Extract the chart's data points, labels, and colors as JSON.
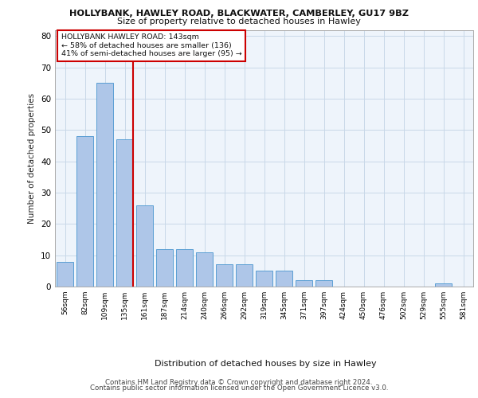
{
  "title": "HOLLYBANK, HAWLEY ROAD, BLACKWATER, CAMBERLEY, GU17 9BZ",
  "subtitle": "Size of property relative to detached houses in Hawley",
  "xlabel": "Distribution of detached houses by size in Hawley",
  "ylabel": "Number of detached properties",
  "categories": [
    "56sqm",
    "82sqm",
    "109sqm",
    "135sqm",
    "161sqm",
    "187sqm",
    "214sqm",
    "240sqm",
    "266sqm",
    "292sqm",
    "319sqm",
    "345sqm",
    "371sqm",
    "397sqm",
    "424sqm",
    "450sqm",
    "476sqm",
    "502sqm",
    "529sqm",
    "555sqm",
    "581sqm"
  ],
  "values": [
    8,
    48,
    65,
    47,
    26,
    12,
    12,
    11,
    7,
    7,
    5,
    5,
    2,
    2,
    0,
    0,
    0,
    0,
    0,
    1,
    0
  ],
  "bar_color": "#aec6e8",
  "bar_edge_color": "#5a9fd4",
  "vline_pos": 3.43,
  "vline_color": "#cc0000",
  "annotation_title": "HOLLYBANK HAWLEY ROAD: 143sqm",
  "annotation_line1": "← 58% of detached houses are smaller (136)",
  "annotation_line2": "41% of semi-detached houses are larger (95) →",
  "annotation_box_color": "#ffffff",
  "annotation_box_edge": "#cc0000",
  "ylim": [
    0,
    82
  ],
  "yticks": [
    0,
    10,
    20,
    30,
    40,
    50,
    60,
    70,
    80
  ],
  "grid_color": "#c8d8e8",
  "background_color": "#eef4fb",
  "footer_line1": "Contains HM Land Registry data © Crown copyright and database right 2024.",
  "footer_line2": "Contains public sector information licensed under the Open Government Licence v3.0."
}
